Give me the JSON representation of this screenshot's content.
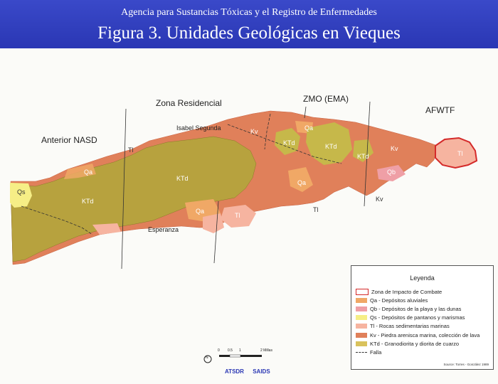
{
  "header": {
    "agency": "Agencia para Sustancias Tóxicas y el Registro de Enfermedades",
    "title": "Figura 3. Unidades Geológicas en Vieques"
  },
  "regions": {
    "nasd": "Anterior NASD",
    "residencial": "Zona Residencial",
    "zmo": "ZMO (EMA)",
    "afwtf": "AFWTF"
  },
  "places": {
    "isabel": "Isabel Segunda",
    "esperanza": "Esperanza"
  },
  "map_labels": {
    "ktd": "KTd",
    "kv": "Kv",
    "qa": "Qa",
    "qb": "Qb",
    "qs": "Qs",
    "tl": "Tl"
  },
  "legend": {
    "title": "Leyenda",
    "items": [
      {
        "label": "Zona de Impacto de Combate",
        "color": "#d42a2a",
        "kind": "outline"
      },
      {
        "label": "Qa - Depósitos aluviales",
        "color": "#f0a866",
        "kind": "fill"
      },
      {
        "label": "Qb - Depósitos de la playa y las dunas",
        "color": "#ef9fa6",
        "kind": "fill"
      },
      {
        "label": "Qs - Depósitos de pantanos y marismas",
        "color": "#f6ee86",
        "kind": "fill"
      },
      {
        "label": "Tl - Rocas sedimentarias marinas",
        "color": "#f6b4a0",
        "kind": "fill"
      },
      {
        "label": "Kv - Piedra arenisca marina, colección de lava",
        "color": "#e0805a",
        "kind": "fill"
      },
      {
        "label": "KTd - Granodiorita y diorita de cuarzo",
        "color": "#d9c25c",
        "kind": "fill"
      },
      {
        "label": "Falla",
        "color": "#333333",
        "kind": "line"
      }
    ],
    "source": "Source: Torres - González 1989"
  },
  "scale": {
    "ticks": [
      "0",
      "0.5",
      "1",
      "2 Millas"
    ],
    "north": "N"
  },
  "logos": {
    "atsdr": "ATSDR",
    "saids": "SAIDS"
  }
}
